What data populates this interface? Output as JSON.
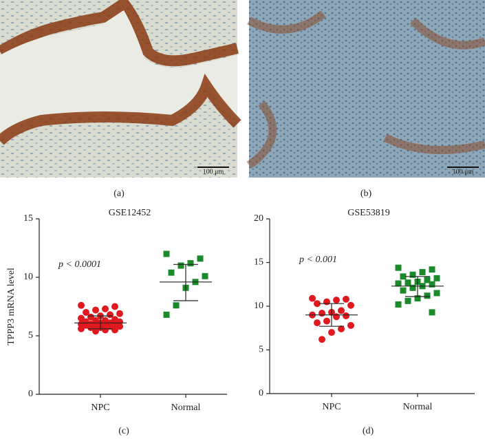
{
  "images": [
    {
      "panel_label": "(a)",
      "scale_bar": "100 μm"
    },
    {
      "panel_label": "(b)",
      "scale_bar": "100 μm"
    }
  ],
  "chart_data": [
    {
      "type": "scatter",
      "title": "GSE12452",
      "panel_label": "(c)",
      "y_label": "TPPP3 mRNA level",
      "annotation": "p < 0.0001",
      "categories": [
        "NPC",
        "Normal"
      ],
      "ylim": [
        0,
        15
      ],
      "yticks": [
        0,
        5,
        10,
        15
      ],
      "series": [
        {
          "color": "#e0191e",
          "marker": "circle",
          "values": [
            7.6,
            7.5,
            7.3,
            7.2,
            7.0,
            6.9,
            6.8,
            6.7,
            6.6,
            6.5,
            6.4,
            6.3,
            6.3,
            6.2,
            6.2,
            6.1,
            6.1,
            6.0,
            6.0,
            6.0,
            5.9,
            5.9,
            5.9,
            5.8,
            5.8,
            5.7,
            5.7,
            5.6,
            5.5,
            5.5,
            5.4
          ],
          "mean": 6.1,
          "upper": 6.7,
          "lower": 5.6
        },
        {
          "color": "#1a8a2a",
          "marker": "square",
          "values": [
            12.0,
            11.6,
            11.2,
            11.0,
            10.4,
            10.1,
            9.6,
            9.1,
            7.6,
            6.8
          ],
          "mean": 9.6,
          "upper": 11.1,
          "lower": 8.0
        }
      ]
    },
    {
      "type": "scatter",
      "title": "GSE53819",
      "panel_label": "(d)",
      "annotation": "p < 0.001",
      "categories": [
        "NPC",
        "Normal"
      ],
      "ylim": [
        0,
        20
      ],
      "yticks": [
        0,
        5,
        10,
        15,
        20
      ],
      "series": [
        {
          "color": "#e0191e",
          "marker": "circle",
          "values": [
            10.9,
            10.8,
            10.7,
            10.5,
            10.3,
            10.1,
            9.5,
            9.3,
            9.2,
            9.0,
            8.9,
            8.8,
            8.3,
            8.1,
            7.8,
            7.4,
            7.0,
            6.2
          ],
          "mean": 9.0,
          "upper": 10.3,
          "lower": 7.7
        },
        {
          "color": "#1a8a2a",
          "marker": "square",
          "values": [
            14.4,
            14.2,
            13.9,
            13.6,
            13.4,
            13.2,
            13.0,
            12.8,
            12.7,
            12.6,
            12.5,
            12.3,
            12.1,
            11.8,
            11.5,
            11.2,
            10.9,
            10.6,
            10.2,
            9.3
          ],
          "mean": 12.3,
          "upper": 13.4,
          "lower": 11.1
        }
      ]
    }
  ]
}
